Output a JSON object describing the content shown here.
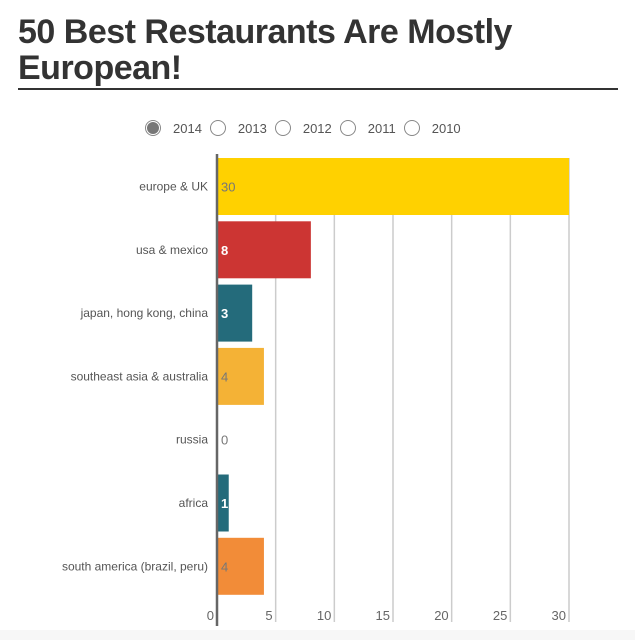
{
  "title": "50 Best Restaurants Are Mostly European!",
  "years": [
    {
      "label": "2014",
      "selected": true
    },
    {
      "label": "2013",
      "selected": false
    },
    {
      "label": "2012",
      "selected": false
    },
    {
      "label": "2011",
      "selected": false
    },
    {
      "label": "2010",
      "selected": false
    }
  ],
  "chart_data": {
    "type": "bar",
    "orientation": "horizontal",
    "categories": [
      "europe & UK",
      "usa & mexico",
      "japan, hong kong, china",
      "southeast asia & australia",
      "russia",
      "africa",
      "south america (brazil, peru)"
    ],
    "values": [
      30,
      8,
      3,
      4,
      0,
      1,
      4
    ],
    "colors": [
      "#ffd100",
      "#cc3533",
      "#246b7b",
      "#f4b236",
      "#999999",
      "#246b7b",
      "#f28c38"
    ],
    "label_colors": [
      "#777777",
      "#ffffff",
      "#ffffff",
      "#777777",
      "#777777",
      "#ffffff",
      "#777777"
    ],
    "xlim": [
      0,
      30
    ],
    "xticks": [
      0,
      5,
      10,
      15,
      20,
      25,
      30
    ],
    "grid": true
  }
}
